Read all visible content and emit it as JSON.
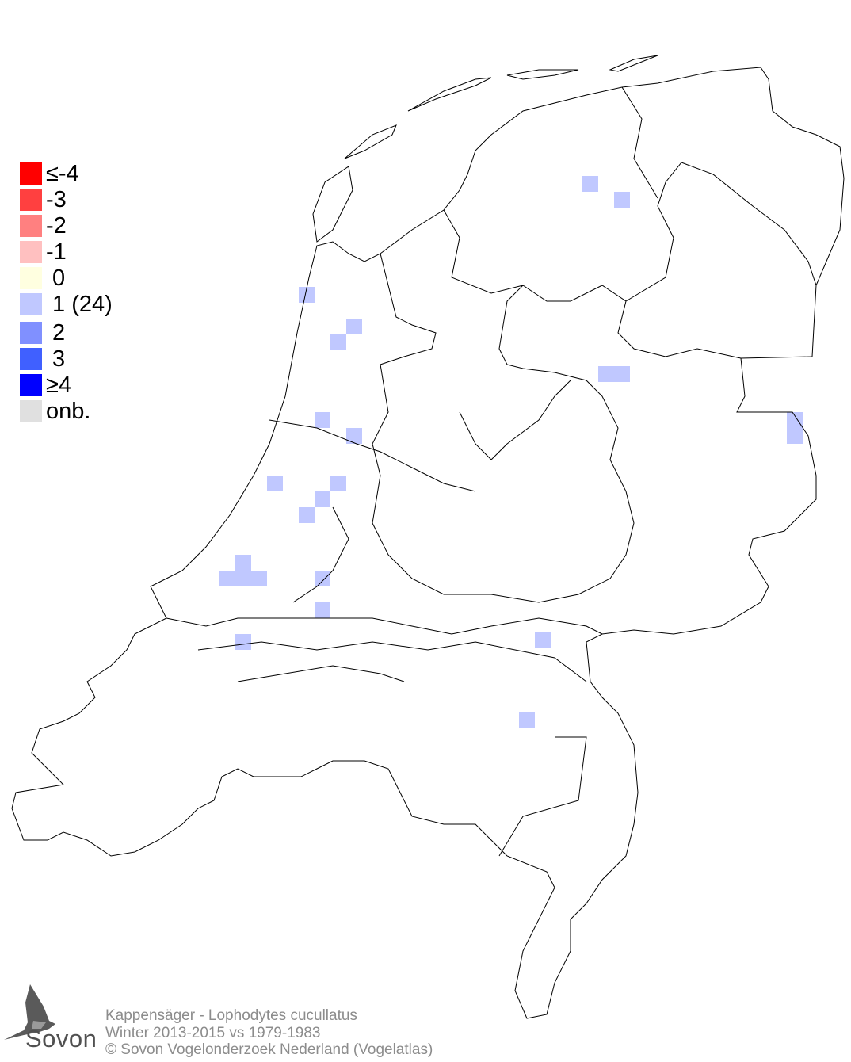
{
  "legend": {
    "items": [
      {
        "label": "≤-4",
        "color": "#ff0000"
      },
      {
        "label": "-3",
        "color": "#ff4040"
      },
      {
        "label": "-2",
        "color": "#ff8080"
      },
      {
        "label": "-1",
        "color": "#ffc0c0"
      },
      {
        "label": " 0",
        "color": "#ffffe0"
      },
      {
        "label": " 1 (24)",
        "color": "#c0c8ff"
      },
      {
        "label": " 2",
        "color": "#8090ff"
      },
      {
        "label": " 3",
        "color": "#4060ff"
      },
      {
        "label": "≥4",
        "color": "#0000ff"
      },
      {
        "label": "onb.",
        "color": "#e0e0e0"
      }
    ]
  },
  "map": {
    "cell_value": 1,
    "cell_color": "#c0c8ff",
    "outline_color": "#000000"
  },
  "footer": {
    "line1": "Kappensäger - Lophodytes cucullatus",
    "line2": "Winter 2013-2015 vs 1979-1983",
    "line3": "© Sovon Vogelonderzoek Nederland (Vogelatlas)"
  },
  "logo": {
    "text": "Sovon"
  }
}
